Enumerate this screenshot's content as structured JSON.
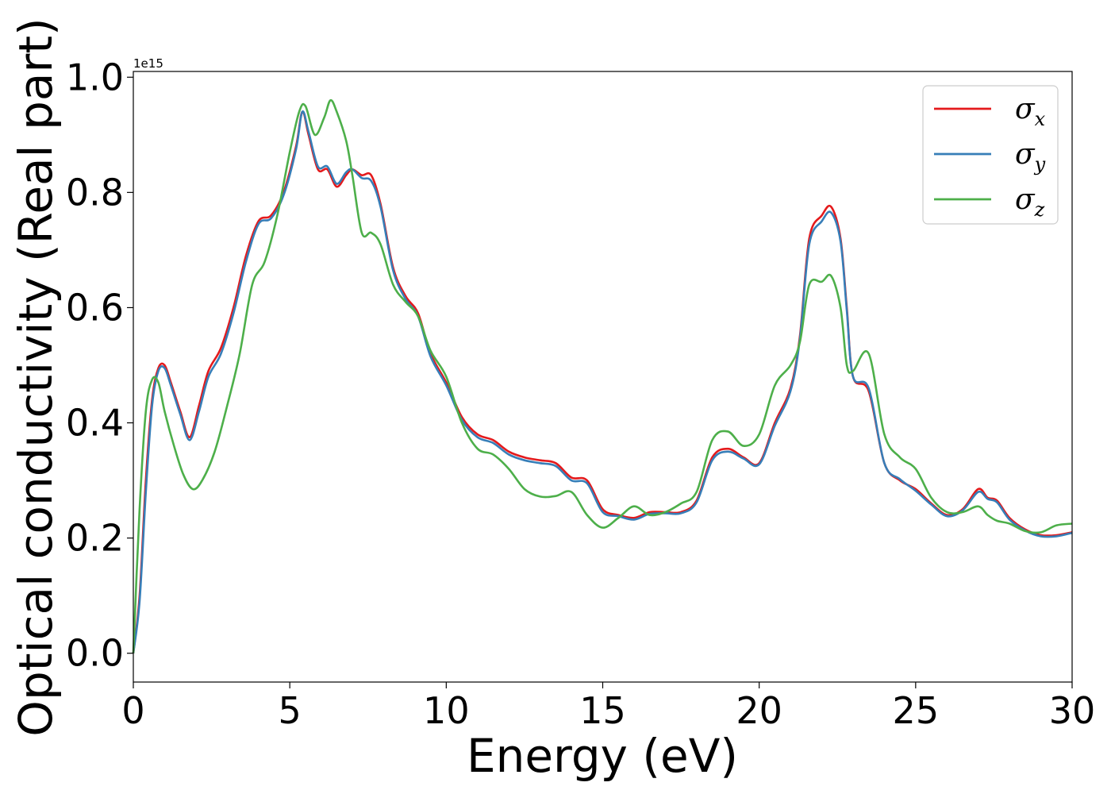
{
  "chart_data": {
    "type": "line",
    "title": "",
    "xlabel": "Energy (eV)",
    "ylabel": "Optical conductivity (Real part)",
    "y_offset_label": "1e15",
    "y_scale_factor": 1000000000000000.0,
    "xlim": [
      0,
      30
    ],
    "ylim": [
      -0.05,
      1.01
    ],
    "xticks": [
      0,
      5,
      10,
      15,
      20,
      25,
      30
    ],
    "xtick_labels": [
      "0",
      "5",
      "10",
      "15",
      "20",
      "25",
      "30"
    ],
    "yticks": [
      0.0,
      0.2,
      0.4,
      0.6,
      0.8,
      1.0
    ],
    "ytick_labels": [
      "0.0",
      "0.2",
      "0.4",
      "0.6",
      "0.8",
      "1.0"
    ],
    "grid": false,
    "legend_position": "top-right",
    "series": [
      {
        "name": "σ",
        "subscript": "x",
        "color": "#e41a1c",
        "x": [
          0,
          0.2,
          0.4,
          0.6,
          0.8,
          1.0,
          1.2,
          1.5,
          1.8,
          2.1,
          2.4,
          2.8,
          3.2,
          3.6,
          4.0,
          4.4,
          4.8,
          5.2,
          5.4,
          5.6,
          5.9,
          6.2,
          6.5,
          6.8,
          7.0,
          7.3,
          7.6,
          7.9,
          8.3,
          8.7,
          9.1,
          9.5,
          10.0,
          10.5,
          11.0,
          11.5,
          12.0,
          12.5,
          13.0,
          13.5,
          14.0,
          14.5,
          15.0,
          15.5,
          16.0,
          16.5,
          17.0,
          17.5,
          18.0,
          18.5,
          19.0,
          19.5,
          20.0,
          20.5,
          21.0,
          21.3,
          21.6,
          22.0,
          22.3,
          22.6,
          22.8,
          23.0,
          23.5,
          24.0,
          24.5,
          25.0,
          25.5,
          26.0,
          26.5,
          27.0,
          27.3,
          27.6,
          28.0,
          28.5,
          29.0,
          29.5,
          30.0
        ],
        "y": [
          0.0,
          0.1,
          0.3,
          0.44,
          0.495,
          0.5,
          0.47,
          0.42,
          0.375,
          0.43,
          0.49,
          0.53,
          0.6,
          0.69,
          0.75,
          0.76,
          0.8,
          0.88,
          0.94,
          0.9,
          0.84,
          0.84,
          0.81,
          0.83,
          0.84,
          0.83,
          0.83,
          0.78,
          0.67,
          0.62,
          0.59,
          0.52,
          0.47,
          0.41,
          0.38,
          0.37,
          0.35,
          0.34,
          0.335,
          0.33,
          0.305,
          0.3,
          0.25,
          0.24,
          0.235,
          0.245,
          0.245,
          0.245,
          0.265,
          0.34,
          0.355,
          0.34,
          0.33,
          0.4,
          0.46,
          0.55,
          0.72,
          0.76,
          0.775,
          0.72,
          0.6,
          0.48,
          0.455,
          0.33,
          0.3,
          0.285,
          0.26,
          0.24,
          0.25,
          0.285,
          0.27,
          0.265,
          0.235,
          0.215,
          0.205,
          0.205,
          0.21
        ]
      },
      {
        "name": "σ",
        "subscript": "y",
        "color": "#377eb8",
        "x": [
          0,
          0.2,
          0.4,
          0.6,
          0.8,
          1.0,
          1.2,
          1.5,
          1.8,
          2.1,
          2.4,
          2.8,
          3.2,
          3.6,
          4.0,
          4.4,
          4.8,
          5.2,
          5.4,
          5.6,
          5.9,
          6.2,
          6.5,
          6.8,
          7.0,
          7.3,
          7.6,
          7.9,
          8.3,
          8.7,
          9.1,
          9.5,
          10.0,
          10.5,
          11.0,
          11.5,
          12.0,
          12.5,
          13.0,
          13.5,
          14.0,
          14.5,
          15.0,
          15.5,
          16.0,
          16.5,
          17.0,
          17.5,
          18.0,
          18.5,
          19.0,
          19.5,
          20.0,
          20.5,
          21.0,
          21.3,
          21.6,
          22.0,
          22.3,
          22.6,
          22.8,
          23.0,
          23.5,
          24.0,
          24.5,
          25.0,
          25.5,
          26.0,
          26.5,
          27.0,
          27.3,
          27.6,
          28.0,
          28.5,
          29.0,
          29.5,
          30.0
        ],
        "y": [
          0.0,
          0.09,
          0.28,
          0.43,
          0.49,
          0.495,
          0.465,
          0.415,
          0.37,
          0.42,
          0.48,
          0.52,
          0.59,
          0.68,
          0.745,
          0.755,
          0.795,
          0.875,
          0.94,
          0.905,
          0.845,
          0.845,
          0.815,
          0.835,
          0.84,
          0.825,
          0.82,
          0.775,
          0.665,
          0.615,
          0.585,
          0.515,
          0.465,
          0.405,
          0.375,
          0.365,
          0.345,
          0.335,
          0.33,
          0.325,
          0.3,
          0.295,
          0.245,
          0.238,
          0.232,
          0.242,
          0.243,
          0.243,
          0.262,
          0.335,
          0.35,
          0.338,
          0.328,
          0.395,
          0.455,
          0.545,
          0.71,
          0.75,
          0.765,
          0.715,
          0.595,
          0.48,
          0.46,
          0.33,
          0.302,
          0.282,
          0.258,
          0.238,
          0.248,
          0.28,
          0.268,
          0.262,
          0.232,
          0.213,
          0.203,
          0.203,
          0.209
        ]
      },
      {
        "name": "σ",
        "subscript": "z",
        "color": "#4daf4a",
        "x": [
          0,
          0.2,
          0.4,
          0.6,
          0.8,
          1.0,
          1.3,
          1.6,
          1.9,
          2.2,
          2.6,
          3.0,
          3.4,
          3.8,
          4.2,
          4.6,
          5.0,
          5.3,
          5.5,
          5.8,
          6.1,
          6.3,
          6.5,
          6.8,
          7.0,
          7.3,
          7.6,
          7.9,
          8.3,
          8.7,
          9.1,
          9.5,
          10.0,
          10.5,
          11.0,
          11.5,
          12.0,
          12.5,
          13.0,
          13.5,
          14.0,
          14.5,
          15.0,
          15.5,
          16.0,
          16.5,
          17.0,
          17.5,
          18.0,
          18.5,
          19.0,
          19.5,
          20.0,
          20.5,
          21.0,
          21.3,
          21.6,
          22.0,
          22.3,
          22.6,
          22.8,
          23.0,
          23.5,
          24.0,
          24.5,
          25.0,
          25.5,
          26.0,
          26.5,
          27.0,
          27.3,
          27.6,
          28.0,
          28.5,
          29.0,
          29.5,
          30.0
        ],
        "y": [
          0.0,
          0.25,
          0.42,
          0.475,
          0.47,
          0.42,
          0.36,
          0.31,
          0.285,
          0.3,
          0.35,
          0.43,
          0.52,
          0.64,
          0.68,
          0.76,
          0.87,
          0.94,
          0.95,
          0.9,
          0.93,
          0.96,
          0.94,
          0.89,
          0.83,
          0.73,
          0.73,
          0.71,
          0.64,
          0.61,
          0.585,
          0.525,
          0.48,
          0.4,
          0.355,
          0.345,
          0.32,
          0.285,
          0.272,
          0.273,
          0.28,
          0.24,
          0.218,
          0.235,
          0.255,
          0.24,
          0.245,
          0.26,
          0.28,
          0.37,
          0.385,
          0.36,
          0.38,
          0.465,
          0.5,
          0.54,
          0.64,
          0.645,
          0.655,
          0.6,
          0.5,
          0.49,
          0.52,
          0.38,
          0.34,
          0.32,
          0.27,
          0.245,
          0.245,
          0.255,
          0.24,
          0.23,
          0.225,
          0.212,
          0.21,
          0.222,
          0.225
        ]
      }
    ]
  }
}
